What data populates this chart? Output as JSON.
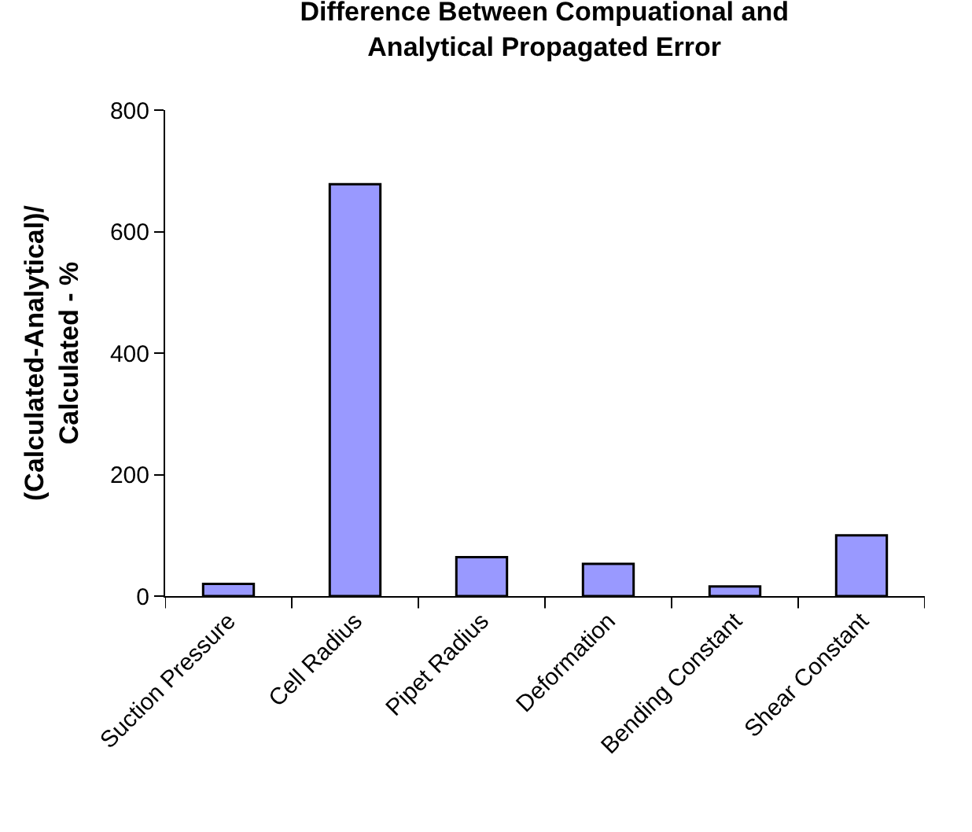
{
  "chart_data": {
    "type": "bar",
    "title": "Difference Between Compuational and Analytical Propagated Error",
    "ylabel": "(Calculated-Analytical)/ Calculated - %",
    "categories": [
      "Suction Pressure",
      "Cell Radius",
      "Pipet Radius",
      "Deformation",
      "Bending Constant",
      "Shear Constant"
    ],
    "values": [
      20,
      678,
      64,
      53,
      16,
      100
    ],
    "color": "#9999ff",
    "ylim": [
      0,
      800
    ],
    "yticks": [
      0,
      200,
      400,
      600,
      800
    ]
  }
}
